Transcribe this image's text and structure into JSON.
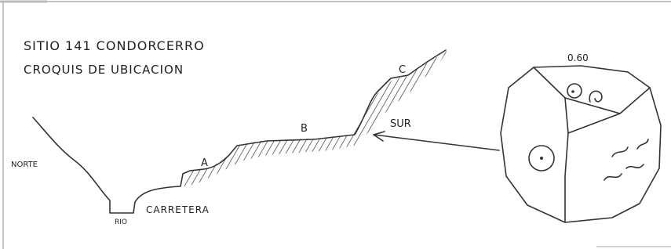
{
  "title": {
    "line1": "SITIO 141  CONDORCERRO",
    "line2": "CROQUIS DE UBICACION"
  },
  "profile": {
    "left": "NORTE",
    "river": "RIO",
    "road": "CARRETERA",
    "terraces": [
      "A",
      "B",
      "C"
    ],
    "direction": "SUR"
  },
  "stone": {
    "label": "0.60"
  }
}
